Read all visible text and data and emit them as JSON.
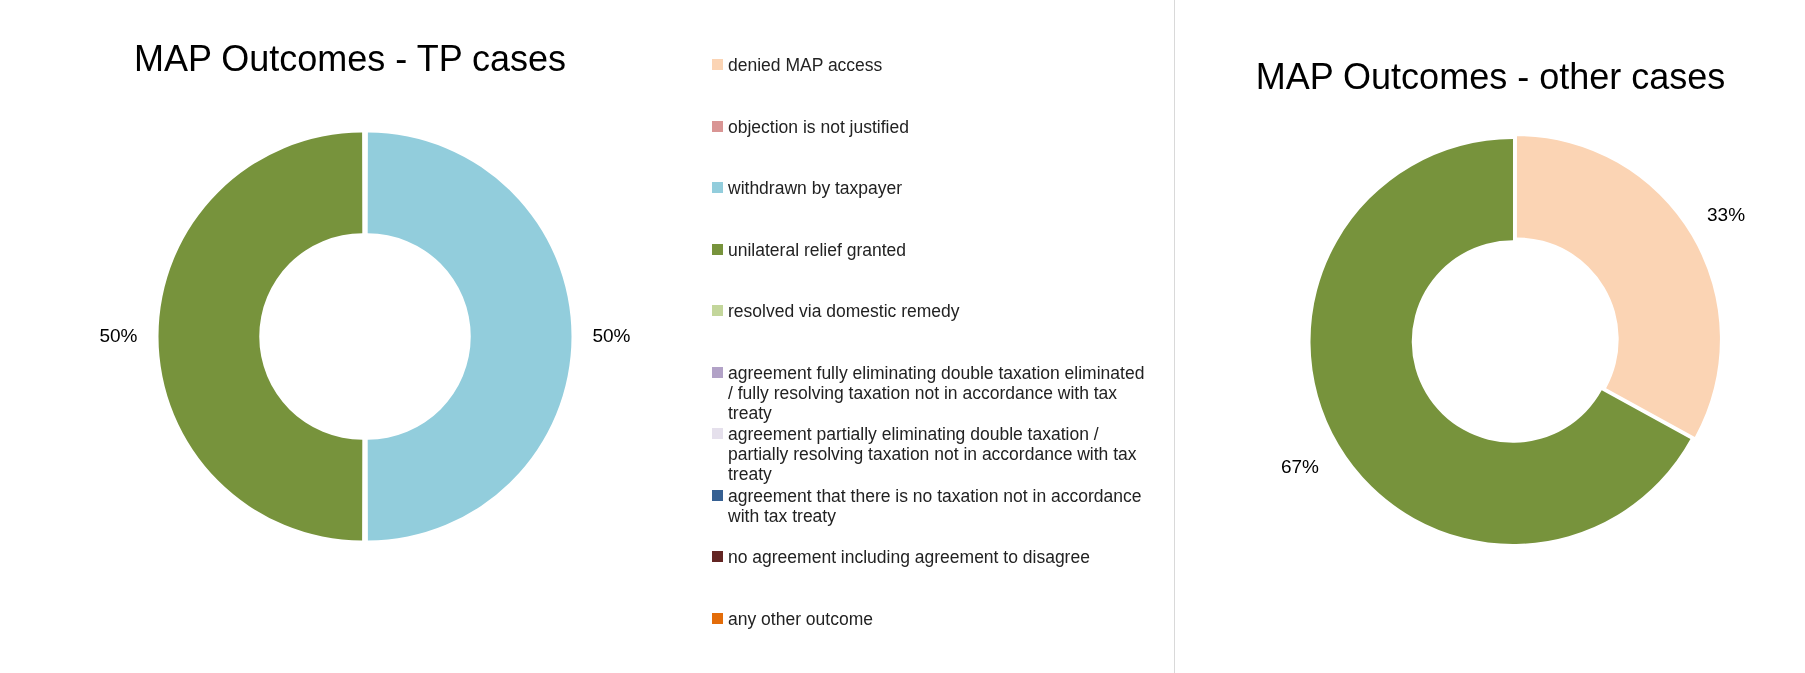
{
  "chart_data": [
    {
      "type": "donut",
      "title": "MAP Outcomes - TP cases",
      "categories": [
        "denied MAP access",
        "objection is not justified",
        "withdrawn by taxpayer",
        "unilateral relief granted",
        "resolved via domestic remedy",
        "agreement fully eliminating double taxation eliminated / fully resolving taxation not in accordance with tax treaty",
        "agreement partially eliminating double taxation / partially resolving taxation not in accordance with tax treaty",
        "agreement that there is no taxation not in accordance with tax treaty",
        "no agreement including agreement to disagree",
        "any other outcome"
      ],
      "values": [
        0,
        0,
        50,
        50,
        0,
        0,
        0,
        0,
        0,
        0
      ],
      "value_labels": [
        null,
        null,
        "50%",
        "50%",
        null,
        null,
        null,
        null,
        null,
        null
      ],
      "colors": [
        "#fbd4b4",
        "#d99594",
        "#92cddc",
        "#77933c",
        "#c3d69b",
        "#b2a2c7",
        "#e5e0ec",
        "#366092",
        "#632523",
        "#e36c09"
      ],
      "legend": "right"
    },
    {
      "type": "donut",
      "title": "MAP Outcomes - other cases",
      "categories": [
        null,
        null
      ],
      "values": [
        33,
        67
      ],
      "value_labels": [
        "33%",
        "67%"
      ],
      "colors": [
        "#fbd4b4",
        "#77933c"
      ]
    }
  ]
}
